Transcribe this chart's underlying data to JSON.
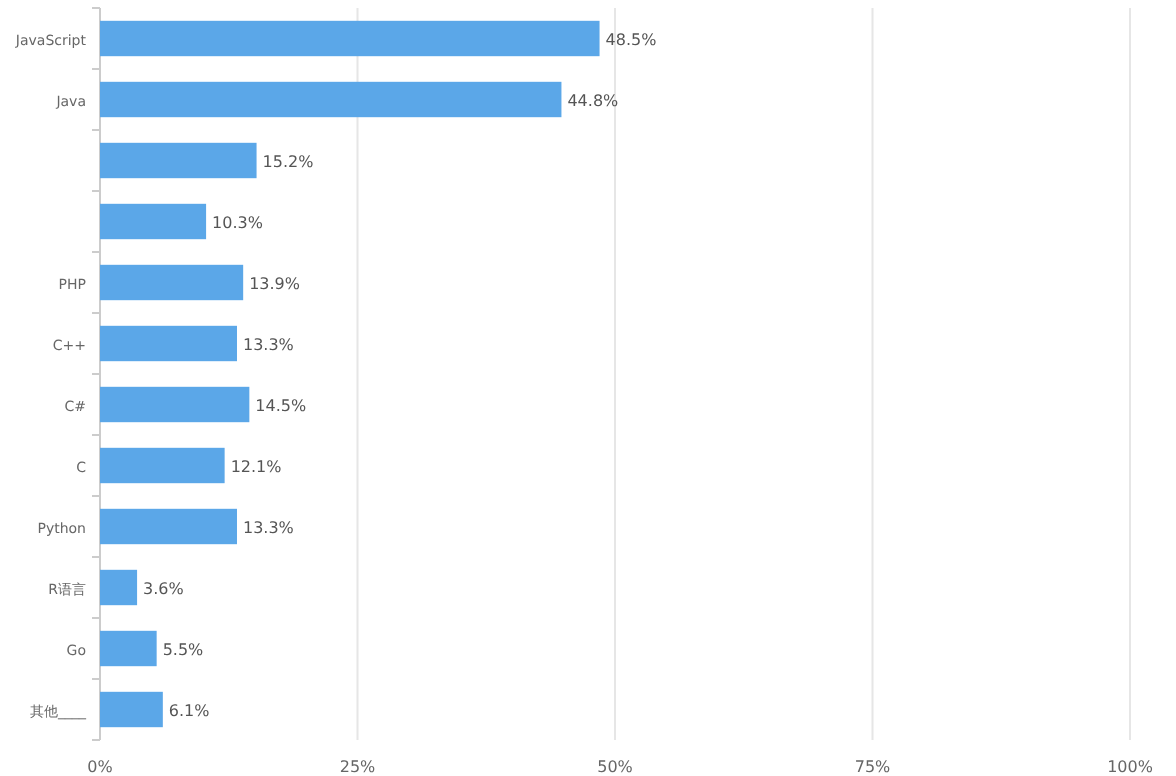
{
  "chart_data": {
    "type": "bar",
    "orientation": "horizontal",
    "categories": [
      "JavaScript",
      "Java",
      null,
      null,
      "PHP",
      "C++",
      "C#",
      "C",
      "Python",
      "R语言",
      "Go",
      "其他____"
    ],
    "values": [
      48.5,
      44.8,
      15.2,
      10.3,
      13.9,
      13.3,
      14.5,
      12.1,
      13.3,
      3.6,
      5.5,
      6.1
    ],
    "value_labels": [
      "48.5%",
      "44.8%",
      "15.2%",
      "10.3%",
      "13.9%",
      "13.3%",
      "14.5%",
      "12.1%",
      "13.3%",
      "3.6%",
      "5.5%",
      "6.1%"
    ],
    "color": "#5ba7e8",
    "xlim": [
      0,
      100
    ],
    "xticks": [
      {
        "value": 0,
        "label": "0%"
      },
      {
        "value": 25,
        "label": "25%"
      },
      {
        "value": 50,
        "label": "50%"
      },
      {
        "value": 75,
        "label": "75%"
      },
      {
        "value": 100,
        "label": "100%"
      }
    ],
    "grid": "x"
  }
}
